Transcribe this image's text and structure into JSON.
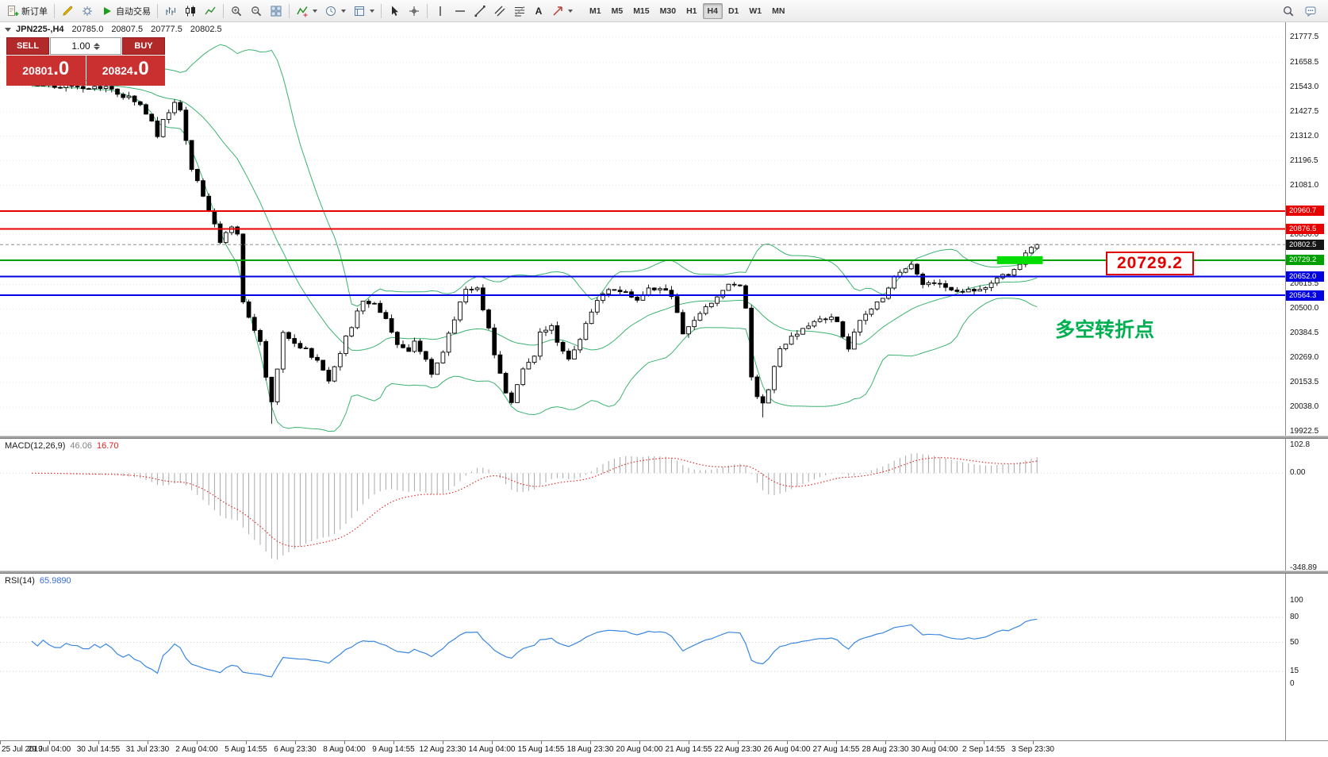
{
  "toolbar": {
    "new_order_label": "新订单",
    "autotrading_label": "自动交易",
    "text_tool_label": "A",
    "timeframes": [
      "M1",
      "M5",
      "M15",
      "M30",
      "H1",
      "H4",
      "D1",
      "W1",
      "MN"
    ],
    "active_timeframe": "H4"
  },
  "chart": {
    "symbol": "JPN225-,H4",
    "ohlc_text": {
      "open": "20785.0",
      "high": "20807.5",
      "low": "20777.5",
      "close": "20802.5"
    },
    "trade_panel": {
      "sell_label": "SELL",
      "buy_label": "BUY",
      "volume": "1.00",
      "sell_price_main": "20801",
      "sell_price_frac": ".0",
      "buy_price_main": "20824",
      "buy_price_frac": ".0"
    },
    "annotation_price_label": "20729.2",
    "annotation_text": "多空转折点",
    "axis_plain": [
      "21777.5",
      "21658.5",
      "21543.0",
      "21427.5",
      "21312.0",
      "21196.5",
      "21081.0",
      "20850.0",
      "20615.5",
      "20500.0",
      "20384.5",
      "20269.0",
      "20153.5",
      "20038.0",
      "19922.5"
    ],
    "axis_tagged": [
      {
        "label": "20960.7",
        "color": "#e80000"
      },
      {
        "label": "20876.5",
        "color": "#e80000"
      },
      {
        "label": "20802.5",
        "color": "#151515"
      },
      {
        "label": "20729.2",
        "color": "#00a000"
      },
      {
        "label": "20652.0",
        "color": "#0000e0"
      },
      {
        "label": "20564.3",
        "color": "#0000e0"
      }
    ]
  },
  "macd": {
    "label": "MACD(12,26,9)",
    "value_main": "46.06",
    "value_signal": "16.70",
    "axis": [
      "102.8",
      "0.00",
      "-348.89"
    ]
  },
  "rsi": {
    "label": "RSI(14)",
    "value": "65.9890",
    "axis": [
      "100",
      "80",
      "50",
      "15",
      "0"
    ]
  },
  "time_axis": [
    "25 Jul 2019",
    "29 Jul 04:00",
    "30 Jul 14:55",
    "31 Jul 23:30",
    "2 Aug 04:00",
    "5 Aug 14:55",
    "6 Aug 23:30",
    "8 Aug 04:00",
    "9 Aug 14:55",
    "12 Aug 23:30",
    "14 Aug 04:00",
    "15 Aug 14:55",
    "18 Aug 23:30",
    "20 Aug 04:00",
    "21 Aug 14:55",
    "22 Aug 23:30",
    "26 Aug 04:00",
    "27 Aug 14:55",
    "28 Aug 23:30",
    "30 Aug 04:00",
    "2 Sep 14:55",
    "3 Sep 23:30"
  ],
  "chart_data": {
    "type": "candlestick",
    "symbol": "JPN225-",
    "timeframe": "H4",
    "ylim": [
      19922.5,
      21777.5
    ],
    "current_ohlc": {
      "open": 20785.0,
      "high": 20807.5,
      "low": 20777.5,
      "close": 20802.5
    },
    "bid_price": 20802.5,
    "hlines": [
      {
        "price": 20960.7,
        "color": "#e80000"
      },
      {
        "price": 20876.5,
        "color": "#e80000"
      },
      {
        "price": 20729.2,
        "color": "#00a000"
      },
      {
        "price": 20652.0,
        "color": "#0000e0"
      },
      {
        "price": 20564.3,
        "color": "#0000e0"
      }
    ],
    "highlight_rect": {
      "price": 20729.2,
      "from_candle": 169,
      "to_candle": 177,
      "color": "#00dd00"
    },
    "bollinger": {
      "period": 20,
      "deviation": 2,
      "color": "#3cb371"
    },
    "macd": {
      "fast": 12,
      "slow": 26,
      "signal": 9,
      "ylim": [
        -348.89,
        102.8
      ]
    },
    "rsi": {
      "period": 14,
      "levels": [
        80,
        50,
        15
      ],
      "ylim": [
        0,
        100
      ]
    },
    "n_candles": 177,
    "price_anchors": [
      [
        0,
        21560
      ],
      [
        5,
        21548
      ],
      [
        9,
        21532
      ],
      [
        13,
        21552
      ],
      [
        16,
        21505
      ],
      [
        19,
        21460
      ],
      [
        21,
        21390
      ],
      [
        22,
        21320
      ],
      [
        23,
        21400
      ],
      [
        25,
        21460
      ],
      [
        26,
        21430
      ],
      [
        28,
        21160
      ],
      [
        30,
        21030
      ],
      [
        32,
        20900
      ],
      [
        33,
        20800
      ],
      [
        34,
        20870
      ],
      [
        35,
        20890
      ],
      [
        36,
        20840
      ],
      [
        37,
        20540
      ],
      [
        38,
        20460
      ],
      [
        40,
        20340
      ],
      [
        41,
        20180
      ],
      [
        42,
        20060
      ],
      [
        43,
        20230
      ],
      [
        44,
        20390
      ],
      [
        46,
        20340
      ],
      [
        48,
        20310
      ],
      [
        50,
        20250
      ],
      [
        52,
        20170
      ],
      [
        54,
        20300
      ],
      [
        56,
        20420
      ],
      [
        58,
        20540
      ],
      [
        60,
        20520
      ],
      [
        62,
        20460
      ],
      [
        64,
        20330
      ],
      [
        66,
        20290
      ],
      [
        67,
        20360
      ],
      [
        69,
        20250
      ],
      [
        70,
        20180
      ],
      [
        72,
        20300
      ],
      [
        74,
        20460
      ],
      [
        76,
        20600
      ],
      [
        78,
        20590
      ],
      [
        80,
        20420
      ],
      [
        81,
        20280
      ],
      [
        83,
        20110
      ],
      [
        84,
        20070
      ],
      [
        86,
        20210
      ],
      [
        88,
        20290
      ],
      [
        89,
        20400
      ],
      [
        91,
        20410
      ],
      [
        93,
        20300
      ],
      [
        94,
        20270
      ],
      [
        96,
        20360
      ],
      [
        98,
        20480
      ],
      [
        100,
        20580
      ],
      [
        102,
        20600
      ],
      [
        104,
        20580
      ],
      [
        106,
        20540
      ],
      [
        108,
        20590
      ],
      [
        110,
        20600
      ],
      [
        112,
        20560
      ],
      [
        114,
        20380
      ],
      [
        116,
        20450
      ],
      [
        118,
        20500
      ],
      [
        120,
        20560
      ],
      [
        122,
        20610
      ],
      [
        124,
        20620
      ],
      [
        125,
        20500
      ],
      [
        126,
        20180
      ],
      [
        127,
        20100
      ],
      [
        128,
        20060
      ],
      [
        129,
        20130
      ],
      [
        131,
        20310
      ],
      [
        133,
        20360
      ],
      [
        135,
        20400
      ],
      [
        137,
        20440
      ],
      [
        139,
        20460
      ],
      [
        141,
        20440
      ],
      [
        143,
        20320
      ],
      [
        145,
        20440
      ],
      [
        147,
        20500
      ],
      [
        149,
        20560
      ],
      [
        151,
        20650
      ],
      [
        153,
        20700
      ],
      [
        154,
        20720
      ],
      [
        156,
        20610
      ],
      [
        158,
        20630
      ],
      [
        160,
        20600
      ],
      [
        162,
        20580
      ],
      [
        164,
        20600
      ],
      [
        166,
        20590
      ],
      [
        168,
        20620
      ],
      [
        170,
        20650
      ],
      [
        172,
        20680
      ],
      [
        174,
        20760
      ],
      [
        176,
        20802.5
      ]
    ],
    "low_overrides": [
      [
        42,
        19960
      ],
      [
        128,
        19990
      ]
    ]
  }
}
